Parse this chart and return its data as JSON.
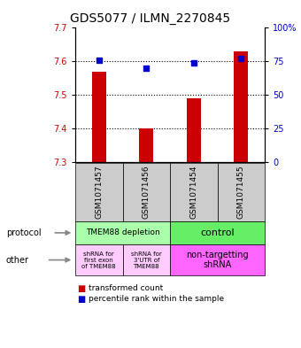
{
  "title": "GDS5077 / ILMN_2270845",
  "samples": [
    "GSM1071457",
    "GSM1071456",
    "GSM1071454",
    "GSM1071455"
  ],
  "red_values": [
    7.57,
    7.4,
    7.49,
    7.63
  ],
  "blue_values": [
    76,
    70,
    74,
    77
  ],
  "y_min": 7.3,
  "y_max": 7.7,
  "y_ticks": [
    7.3,
    7.4,
    7.5,
    7.6,
    7.7
  ],
  "y2_ticks": [
    0,
    25,
    50,
    75,
    100
  ],
  "y2_labels": [
    "0",
    "25",
    "50",
    "75",
    "100%"
  ],
  "dotted_lines": [
    7.4,
    7.5,
    7.6
  ],
  "bar_color": "#cc0000",
  "dot_color": "#0000cc",
  "bar_bottom": 7.3,
  "protocol_row": {
    "left_label": "TMEM88 depletion",
    "right_label": "control",
    "left_color": "#aaffaa",
    "right_color": "#66ee66"
  },
  "other_row": {
    "cell1": "shRNA for\nfirst exon\nof TMEM88",
    "cell2": "shRNA for\n3'UTR of\nTMEM88",
    "cell3": "non-targetting\nshRNA",
    "cell12_color": "#ffccff",
    "cell3_color": "#ff66ff"
  },
  "legend_red": "transformed count",
  "legend_blue": "percentile rank within the sample",
  "bg_color": "#ffffff",
  "axis_color_left": "#cc0000",
  "axis_color_right": "#0000cc",
  "title_fontsize": 10,
  "tick_fontsize": 7,
  "sample_fontsize": 6.5,
  "label_fontsize": 7,
  "row_label_color": "black",
  "arrow_color": "#888888"
}
